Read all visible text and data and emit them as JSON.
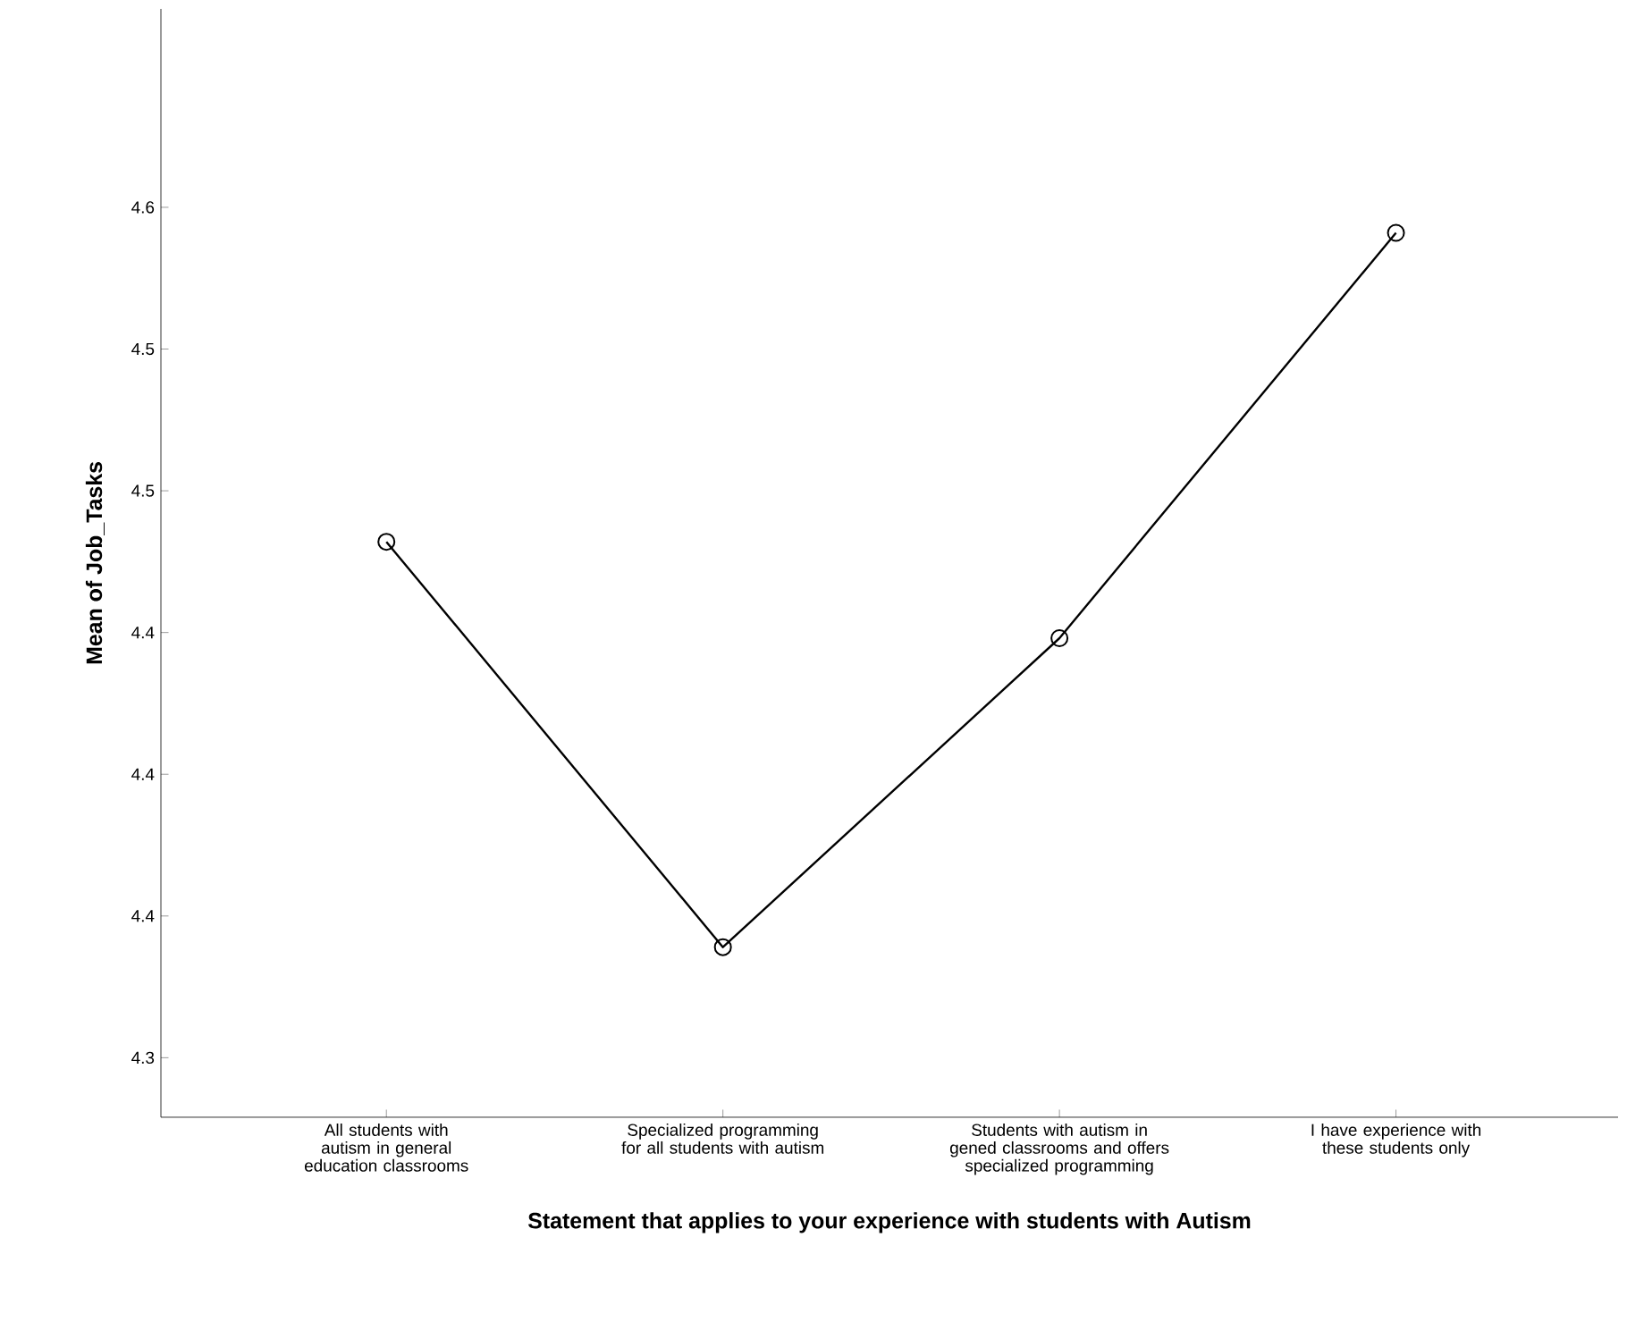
{
  "chart_data": {
    "type": "line",
    "xlabel": "Statement that applies to your experience with students with Autism",
    "ylabel": "Mean of Job_Tasks",
    "categories": [
      "All students with autism in general education classrooms",
      "Specialized programming for all students with autism",
      "Students with autism in gened classrooms and offers specialized programming",
      "I have experience with these students only"
    ],
    "values": [
      4.482,
      4.339,
      4.448,
      4.591
    ],
    "color": "#000000",
    "marker": "circle",
    "line_style": "solid",
    "grid": false,
    "ylim": [
      4.279,
      4.67
    ],
    "yticks": [
      {
        "value": 4.3,
        "label": "4.3"
      },
      {
        "value": 4.35,
        "label": "4.4"
      },
      {
        "value": 4.4,
        "label": "4.4"
      },
      {
        "value": 4.45,
        "label": "4.4"
      },
      {
        "value": 4.5,
        "label": "4.5"
      },
      {
        "value": 4.55,
        "label": "4.5"
      },
      {
        "value": 4.6,
        "label": "4.6"
      }
    ]
  }
}
